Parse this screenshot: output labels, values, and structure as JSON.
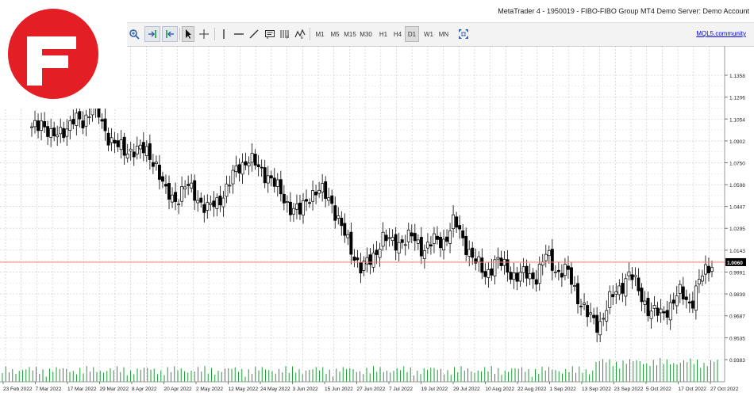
{
  "window": {
    "title": "MetaTrader 4 - 1950019 - FIBO-FIBO Group MT4 Demo Server: Demo Account"
  },
  "toolbar": {
    "timeframes": [
      "M1",
      "M5",
      "M15",
      "M30",
      "H1",
      "H4",
      "D1",
      "W1",
      "MN"
    ],
    "active_timeframe": "D1",
    "community_link": "MQL5.community",
    "icons": [
      "zoom-in-icon",
      "chart-shift-icon",
      "autoscroll-icon",
      "cursor-icon",
      "crosshair-icon",
      "vertical-line-icon",
      "horizontal-line-icon",
      "trendline-icon",
      "text-label-icon",
      "fibonacci-icon",
      "elliott-wave-icon",
      "fullscreen-icon"
    ]
  },
  "logo": {
    "brand": "FIBO Group",
    "color": "#e31e24"
  },
  "chart_data": {
    "type": "candlestick",
    "price_axis": {
      "ticks": [
        "1.1358",
        "1.1206",
        "1.1054",
        "1.0902",
        "1.0750",
        "1.0598",
        "1.0447",
        "1.0295",
        "1.0143",
        "0.9991",
        "0.9839",
        "0.9687",
        "0.9535",
        "0.9383"
      ]
    },
    "current_price": "1.0060",
    "current_price_line_color": "#f0826e",
    "date_labels": [
      "23 Feb 2022",
      "7 Mar 2022",
      "17 Mar 2022",
      "29 Mar 2022",
      "8 Apr 2022",
      "20 Apr 2022",
      "2 May 2022",
      "12 May 2022",
      "24 May 2022",
      "3 Jun 2022",
      "15 Jun 2022",
      "27 Jun 2022",
      "7 Jul 2022",
      "19 Jul 2022",
      "29 Jul 2022",
      "10 Aug 2022",
      "22 Aug 2022",
      "1 Sep 2022",
      "13 Sep 2022",
      "23 Sep 2022",
      "5 Oct 2022",
      "17 Oct 2022",
      "27 Oct 2022"
    ],
    "close_path": [
      1.097,
      1.105,
      1.091,
      1.098,
      1.104,
      1.103,
      1.118,
      1.097,
      1.09,
      1.081,
      1.086,
      1.082,
      1.076,
      1.053,
      1.05,
      1.059,
      1.052,
      1.042,
      1.048,
      1.058,
      1.072,
      1.078,
      1.071,
      1.066,
      1.055,
      1.045,
      1.04,
      1.054,
      1.055,
      1.05,
      1.03,
      1.015,
      1.001,
      1.008,
      1.023,
      1.019,
      1.021,
      1.023,
      1.015,
      1.02,
      1.021,
      1.034,
      1.02,
      1.006,
      0.998,
      1.006,
      1.003,
      0.995,
      0.998,
      0.996,
      1.012,
      0.999,
      0.999,
      0.982,
      0.968,
      0.962,
      0.978,
      0.988,
      0.998,
      0.985,
      0.971,
      0.97,
      0.976,
      0.985,
      0.977,
      0.996,
      1.006
    ],
    "volume_color": "#1f9e3a",
    "grid": true,
    "background": "#ffffff",
    "candle_color": "#000000"
  }
}
